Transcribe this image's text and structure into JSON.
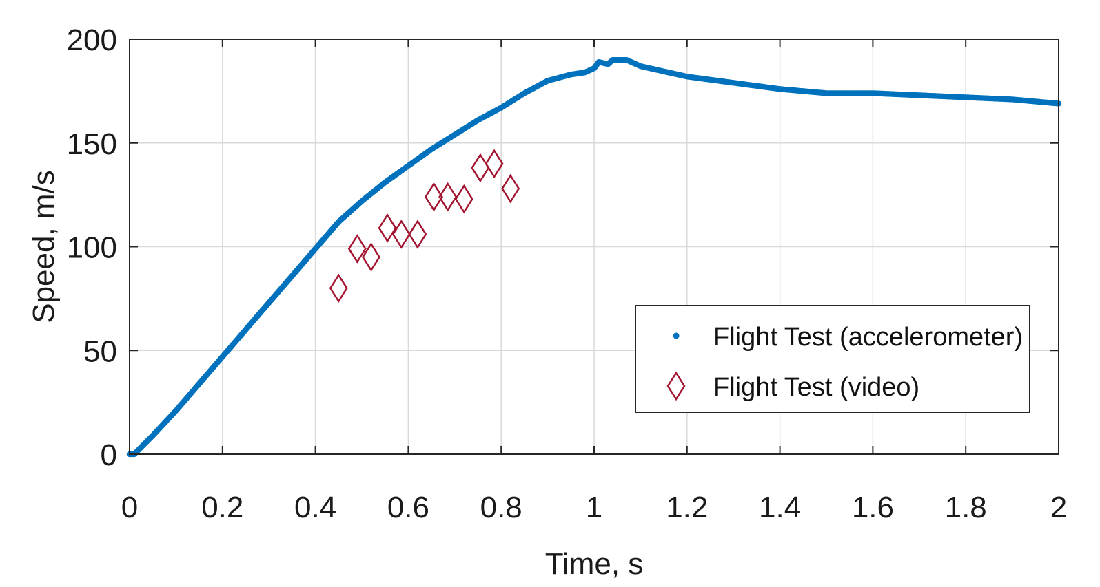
{
  "chart_data": {
    "type": "line",
    "xlabel": "Time, s",
    "ylabel": "Speed, m/s",
    "xlim": [
      0,
      2
    ],
    "ylim": [
      0,
      200
    ],
    "xticks": [
      "0",
      "0.2",
      "0.4",
      "0.6",
      "0.8",
      "1",
      "1.2",
      "1.4",
      "1.6",
      "1.8",
      "2"
    ],
    "yticks": [
      "0",
      "50",
      "100",
      "150",
      "200"
    ],
    "grid": true,
    "legend_position": "bottom-right",
    "series": [
      {
        "name": "Flight Test (accelerometer)",
        "style": "dots",
        "color": "#0072BD",
        "x": [
          0,
          0.01,
          0.05,
          0.1,
          0.15,
          0.2,
          0.25,
          0.3,
          0.35,
          0.4,
          0.45,
          0.5,
          0.55,
          0.6,
          0.65,
          0.7,
          0.75,
          0.8,
          0.85,
          0.9,
          0.95,
          0.98,
          1.0,
          1.01,
          1.03,
          1.04,
          1.05,
          1.07,
          1.1,
          1.2,
          1.3,
          1.4,
          1.5,
          1.6,
          1.7,
          1.8,
          1.9,
          2.0
        ],
        "y": [
          0,
          0,
          9,
          21,
          34,
          47,
          60,
          73,
          86,
          99,
          112,
          122,
          131,
          139,
          147,
          154,
          161,
          167,
          174,
          180,
          183,
          184,
          186,
          189,
          188,
          190,
          190,
          190,
          187,
          182,
          179,
          176,
          174,
          174,
          173,
          172,
          171,
          169
        ]
      },
      {
        "name": "Flight Test (video)",
        "style": "diamond",
        "color": "#A2142F",
        "x": [
          0.45,
          0.49,
          0.52,
          0.555,
          0.585,
          0.62,
          0.655,
          0.685,
          0.72,
          0.755,
          0.785,
          0.82
        ],
        "y": [
          80,
          99,
          95,
          109,
          106,
          106,
          124,
          124,
          123,
          138,
          140,
          128
        ]
      }
    ]
  }
}
